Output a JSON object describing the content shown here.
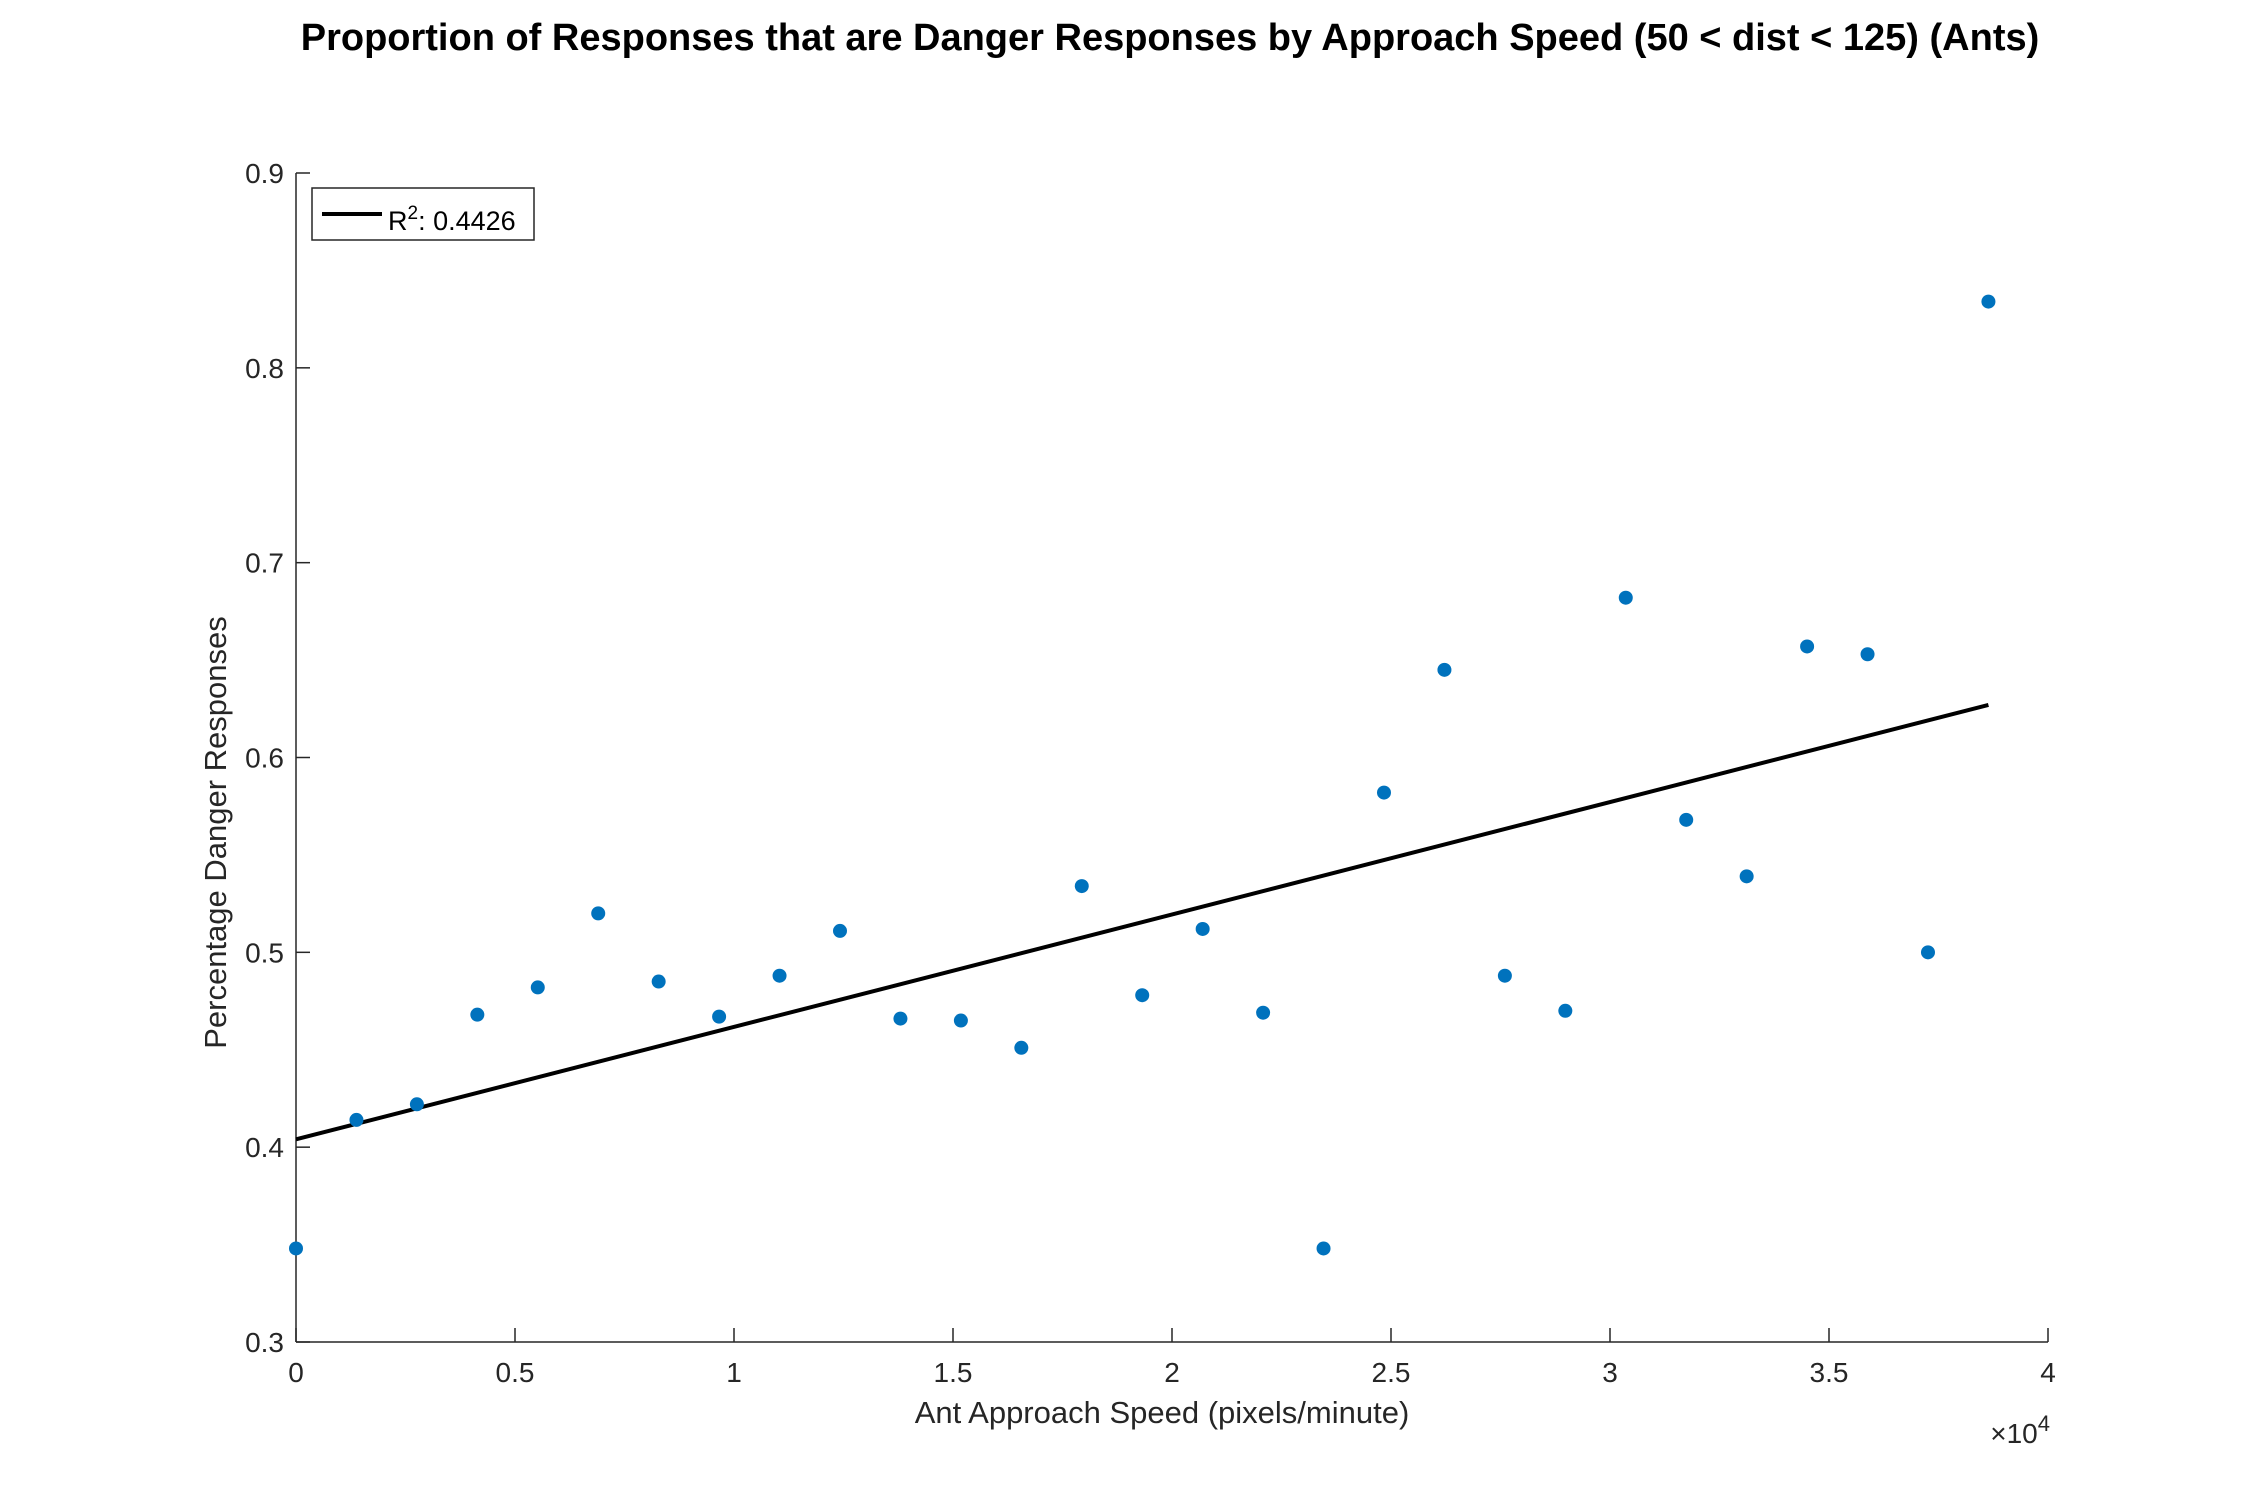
{
  "chart_data": {
    "type": "scatter",
    "title": "Proportion of Responses that are Danger Responses by Approach Speed (50 < dist < 125) (Ants)",
    "xlabel": "Ant Approach Speed (pixels/minute)",
    "ylabel": "Percentage Danger Responses",
    "x_exponent_label": "×10",
    "x_exponent_power": "4",
    "xlim": [
      0,
      40000
    ],
    "ylim": [
      0.3,
      0.9
    ],
    "xticks": [
      0,
      5000,
      10000,
      15000,
      20000,
      25000,
      30000,
      35000,
      40000
    ],
    "xtick_labels": [
      "0",
      "0.5",
      "1",
      "1.5",
      "2",
      "2.5",
      "3",
      "3.5",
      "4"
    ],
    "yticks": [
      0.3,
      0.4,
      0.5,
      0.6,
      0.7,
      0.8,
      0.9
    ],
    "ytick_labels": [
      "0.3",
      "0.4",
      "0.5",
      "0.6",
      "0.7",
      "0.8",
      "0.9"
    ],
    "grid": false,
    "marker_color": "#0072BD",
    "line_color": "#000000",
    "points": [
      {
        "x": 0,
        "y": 0.348
      },
      {
        "x": 1380,
        "y": 0.414
      },
      {
        "x": 2760,
        "y": 0.422
      },
      {
        "x": 4140,
        "y": 0.468
      },
      {
        "x": 5520,
        "y": 0.482
      },
      {
        "x": 6900,
        "y": 0.52
      },
      {
        "x": 8280,
        "y": 0.485
      },
      {
        "x": 9660,
        "y": 0.467
      },
      {
        "x": 11040,
        "y": 0.488
      },
      {
        "x": 12420,
        "y": 0.511
      },
      {
        "x": 13800,
        "y": 0.466
      },
      {
        "x": 15180,
        "y": 0.465
      },
      {
        "x": 16560,
        "y": 0.451
      },
      {
        "x": 17940,
        "y": 0.534
      },
      {
        "x": 19320,
        "y": 0.478
      },
      {
        "x": 20700,
        "y": 0.512
      },
      {
        "x": 22080,
        "y": 0.469
      },
      {
        "x": 23460,
        "y": 0.348
      },
      {
        "x": 24840,
        "y": 0.582
      },
      {
        "x": 26220,
        "y": 0.645
      },
      {
        "x": 27600,
        "y": 0.488
      },
      {
        "x": 28980,
        "y": 0.47
      },
      {
        "x": 30360,
        "y": 0.682
      },
      {
        "x": 31740,
        "y": 0.568
      },
      {
        "x": 33120,
        "y": 0.539
      },
      {
        "x": 34500,
        "y": 0.657
      },
      {
        "x": 35880,
        "y": 0.653
      },
      {
        "x": 37260,
        "y": 0.5
      },
      {
        "x": 38640,
        "y": 0.834
      }
    ],
    "fit_line": {
      "x": [
        0,
        38640
      ],
      "y": [
        0.404,
        0.627
      ]
    },
    "legend": {
      "placement": "top-left",
      "entries": [
        {
          "label_prefix": "R",
          "label_sup": "2",
          "label_suffix": ": 0.4426"
        }
      ]
    }
  }
}
